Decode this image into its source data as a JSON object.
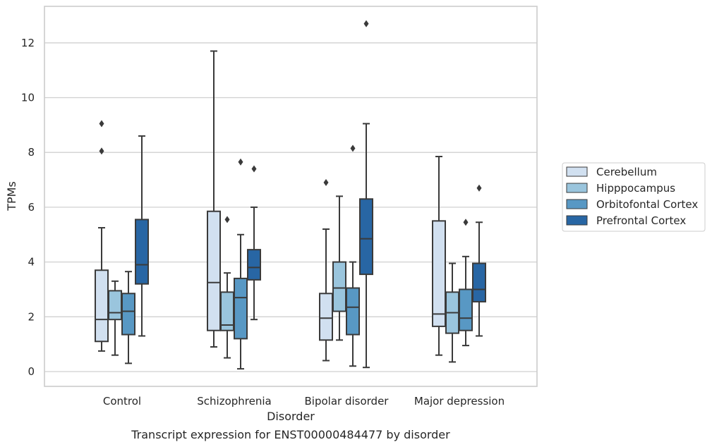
{
  "chart_data": {
    "type": "box",
    "title": "Transcript expression for ENST00000484477 by disorder",
    "xlabel": "Disorder",
    "ylabel": "TPMs",
    "ylim": [
      -0.5,
      13.4
    ],
    "yticks": [
      0,
      2,
      4,
      6,
      8,
      10,
      12
    ],
    "grid": "horizontal",
    "legend_position": "right",
    "categories": [
      "Control",
      "Schizophrenia",
      "Bipolar disorder",
      "Major depression"
    ],
    "series": [
      {
        "name": "Cerebellum",
        "color": "#d1e0f0",
        "boxes": [
          {
            "whislo": 0.75,
            "q1": 1.1,
            "med": 1.9,
            "q3": 3.7,
            "whishi": 5.25,
            "fliers": [
              8.05,
              9.05
            ]
          },
          {
            "whislo": 0.9,
            "q1": 1.5,
            "med": 3.25,
            "q3": 5.85,
            "whishi": 11.7,
            "fliers": []
          },
          {
            "whislo": 0.4,
            "q1": 1.15,
            "med": 1.95,
            "q3": 2.85,
            "whishi": 5.2,
            "fliers": [
              6.9
            ]
          },
          {
            "whislo": 0.6,
            "q1": 1.65,
            "med": 2.1,
            "q3": 5.5,
            "whishi": 7.85,
            "fliers": []
          }
        ]
      },
      {
        "name": "Hipppocampus",
        "color": "#9ac5dd",
        "boxes": [
          {
            "whislo": 0.6,
            "q1": 1.9,
            "med": 2.15,
            "q3": 2.95,
            "whishi": 3.3,
            "fliers": []
          },
          {
            "whislo": 0.5,
            "q1": 1.5,
            "med": 1.7,
            "q3": 2.9,
            "whishi": 3.6,
            "fliers": [
              5.55
            ]
          },
          {
            "whislo": 1.15,
            "q1": 2.2,
            "med": 3.05,
            "q3": 4.0,
            "whishi": 6.4,
            "fliers": []
          },
          {
            "whislo": 0.35,
            "q1": 1.4,
            "med": 2.15,
            "q3": 2.9,
            "whishi": 3.95,
            "fliers": []
          }
        ]
      },
      {
        "name": "Orbitofontal Cortex",
        "color": "#5898c4",
        "boxes": [
          {
            "whislo": 0.3,
            "q1": 1.35,
            "med": 2.2,
            "q3": 2.85,
            "whishi": 3.65,
            "fliers": []
          },
          {
            "whislo": 0.1,
            "q1": 1.2,
            "med": 2.7,
            "q3": 3.4,
            "whishi": 5.0,
            "fliers": [
              7.65
            ]
          },
          {
            "whislo": 0.2,
            "q1": 1.35,
            "med": 2.35,
            "q3": 3.05,
            "whishi": 4.0,
            "fliers": [
              8.15
            ]
          },
          {
            "whislo": 0.95,
            "q1": 1.5,
            "med": 1.95,
            "q3": 3.0,
            "whishi": 4.2,
            "fliers": [
              5.45
            ]
          }
        ]
      },
      {
        "name": "Prefrontal Cortex",
        "color": "#2866a4",
        "boxes": [
          {
            "whislo": 1.3,
            "q1": 3.2,
            "med": 3.9,
            "q3": 5.55,
            "whishi": 8.6,
            "fliers": []
          },
          {
            "whislo": 1.9,
            "q1": 3.35,
            "med": 3.8,
            "q3": 4.45,
            "whishi": 6.0,
            "fliers": [
              7.4
            ]
          },
          {
            "whislo": 0.15,
            "q1": 3.55,
            "med": 4.85,
            "q3": 6.3,
            "whishi": 9.05,
            "fliers": [
              12.7
            ]
          },
          {
            "whislo": 1.3,
            "q1": 2.55,
            "med": 3.0,
            "q3": 3.95,
            "whishi": 5.45,
            "fliers": [
              6.7
            ]
          }
        ]
      }
    ]
  }
}
